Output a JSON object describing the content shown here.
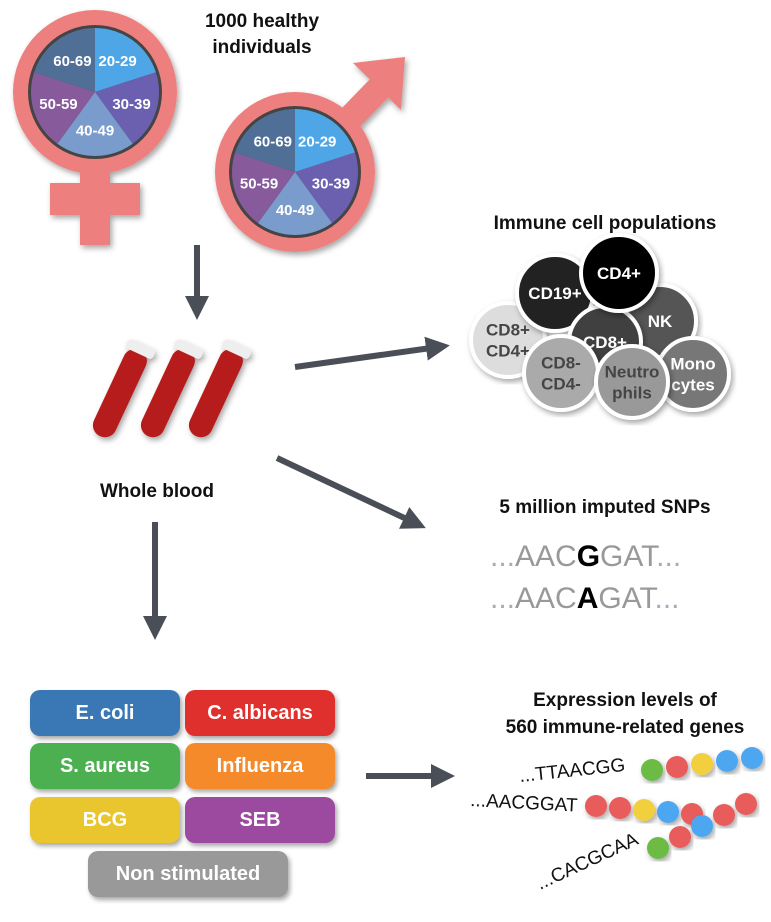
{
  "title_lines": [
    "1000 healthy",
    "individuals"
  ],
  "age_groups": [
    "20-29",
    "30-39",
    "40-49",
    "50-59",
    "60-69"
  ],
  "age_colors": [
    "#4ea6e6",
    "#6b5fb0",
    "#7a9ccc",
    "#875a9c",
    "#4f6f96"
  ],
  "symbol_color": "#ee7f7f",
  "whole_blood": "Whole blood",
  "immune": {
    "title": "Immune cell populations",
    "cells": [
      {
        "label": "CD19+",
        "color": "#222222"
      },
      {
        "label": "CD4+",
        "color": "#000000"
      },
      {
        "label": "NK",
        "color": "#555555"
      },
      {
        "label": "CD8+",
        "color": "#3f3f3f"
      },
      {
        "label": "CD8+ CD4+",
        "color": "#dddddd"
      },
      {
        "label": "CD8- CD4-",
        "color": "#aaaaaa"
      },
      {
        "label": "Neutro phils",
        "color": "#999999"
      },
      {
        "label": "Mono cytes",
        "color": "#777777"
      }
    ]
  },
  "snps": {
    "title": "5 million imputed SNPs",
    "seq1": [
      "AAC",
      "G",
      "GAT"
    ],
    "seq2": [
      "AAC",
      "A",
      "GAT"
    ],
    "ellipsis": "..."
  },
  "stimuli": [
    {
      "label": "E. coli",
      "color": "#3a78b5"
    },
    {
      "label": "C. albicans",
      "color": "#e0302e"
    },
    {
      "label": "S. aureus",
      "color": "#4caf50"
    },
    {
      "label": "Influenza",
      "color": "#f58a2a"
    },
    {
      "label": "BCG",
      "color": "#e9c52e"
    },
    {
      "label": "SEB",
      "color": "#9b4aa0"
    },
    {
      "label": "Non stimulated",
      "color": "#999999"
    }
  ],
  "expression": {
    "title_lines": [
      "Expression levels of",
      "560 immune-related genes"
    ],
    "sequences": [
      "...TTAACGG",
      "...AACGGAT",
      "...CACGCAA"
    ]
  }
}
